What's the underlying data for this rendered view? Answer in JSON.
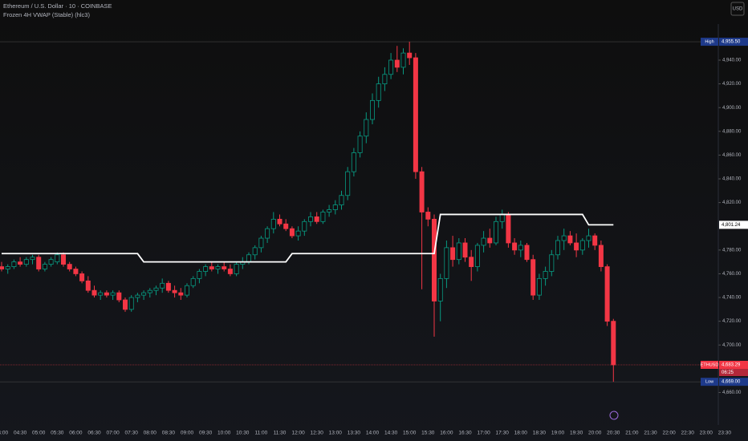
{
  "chart_data": {
    "type": "candlestick",
    "title": "Ethereum / U.S. Dollar · 10 · COINBASE",
    "subtitle": "Frozen 4H VWAP (Stable) (hlc3)",
    "currency": "USD",
    "up_color": "#089981",
    "down_color": "#f23645",
    "ohlc": [
      [
        4766,
        4770,
        4762,
        4764
      ],
      [
        4764,
        4768,
        4760,
        4766
      ],
      [
        4766,
        4772,
        4764,
        4770
      ],
      [
        4770,
        4774,
        4766,
        4768
      ],
      [
        4768,
        4774,
        4766,
        4772
      ],
      [
        4772,
        4776,
        4768,
        4774
      ],
      [
        4774,
        4776,
        4762,
        4764
      ],
      [
        4764,
        4770,
        4762,
        4768
      ],
      [
        4768,
        4774,
        4766,
        4772
      ],
      [
        4770,
        4778,
        4768,
        4776
      ],
      [
        4776,
        4778,
        4766,
        4768
      ],
      [
        4768,
        4770,
        4762,
        4764
      ],
      [
        4764,
        4766,
        4758,
        4760
      ],
      [
        4760,
        4762,
        4752,
        4754
      ],
      [
        4754,
        4758,
        4744,
        4746
      ],
      [
        4746,
        4750,
        4740,
        4742
      ],
      [
        4742,
        4746,
        4738,
        4744
      ],
      [
        4744,
        4746,
        4740,
        4742
      ],
      [
        4742,
        4746,
        4738,
        4744
      ],
      [
        4744,
        4746,
        4736,
        4738
      ],
      [
        4738,
        4740,
        4728,
        4730
      ],
      [
        4730,
        4742,
        4728,
        4740
      ],
      [
        4740,
        4744,
        4736,
        4742
      ],
      [
        4742,
        4746,
        4738,
        4744
      ],
      [
        4744,
        4748,
        4740,
        4746
      ],
      [
        4746,
        4750,
        4742,
        4748
      ],
      [
        4748,
        4756,
        4744,
        4752
      ],
      [
        4752,
        4754,
        4744,
        4746
      ],
      [
        4746,
        4750,
        4740,
        4744
      ],
      [
        4744,
        4748,
        4738,
        4742
      ],
      [
        4742,
        4752,
        4740,
        4750
      ],
      [
        4750,
        4758,
        4748,
        4756
      ],
      [
        4756,
        4764,
        4752,
        4762
      ],
      [
        4762,
        4768,
        4758,
        4766
      ],
      [
        4766,
        4770,
        4762,
        4764
      ],
      [
        4764,
        4768,
        4760,
        4766
      ],
      [
        4766,
        4770,
        4762,
        4764
      ],
      [
        4764,
        4768,
        4758,
        4760
      ],
      [
        4760,
        4770,
        4758,
        4768
      ],
      [
        4768,
        4774,
        4764,
        4770
      ],
      [
        4770,
        4778,
        4768,
        4776
      ],
      [
        4776,
        4784,
        4772,
        4782
      ],
      [
        4782,
        4792,
        4778,
        4790
      ],
      [
        4790,
        4800,
        4786,
        4798
      ],
      [
        4798,
        4812,
        4794,
        4806
      ],
      [
        4806,
        4810,
        4800,
        4802
      ],
      [
        4802,
        4806,
        4796,
        4798
      ],
      [
        4798,
        4800,
        4790,
        4792
      ],
      [
        4792,
        4800,
        4788,
        4796
      ],
      [
        4796,
        4806,
        4792,
        4804
      ],
      [
        4804,
        4812,
        4800,
        4808
      ],
      [
        4808,
        4812,
        4802,
        4804
      ],
      [
        4804,
        4814,
        4802,
        4812
      ],
      [
        4812,
        4818,
        4808,
        4814
      ],
      [
        4814,
        4822,
        4810,
        4818
      ],
      [
        4818,
        4830,
        4814,
        4826
      ],
      [
        4826,
        4850,
        4822,
        4846
      ],
      [
        4846,
        4866,
        4842,
        4862
      ],
      [
        4862,
        4880,
        4858,
        4876
      ],
      [
        4876,
        4896,
        4870,
        4890
      ],
      [
        4890,
        4912,
        4886,
        4906
      ],
      [
        4906,
        4926,
        4900,
        4920
      ],
      [
        4920,
        4934,
        4914,
        4928
      ],
      [
        4928,
        4946,
        4924,
        4940
      ],
      [
        4940,
        4952,
        4930,
        4934
      ],
      [
        4934,
        4950,
        4928,
        4946
      ],
      [
        4946,
        4955.5,
        4936,
        4942
      ],
      [
        4942,
        4946,
        4840,
        4846
      ],
      [
        4846,
        4850,
        4747,
        4812
      ],
      [
        4812,
        4816,
        4800,
        4806
      ],
      [
        4806,
        4810,
        4707,
        4737
      ],
      [
        4737,
        4760,
        4720,
        4756
      ],
      [
        4756,
        4788,
        4748,
        4782
      ],
      [
        4782,
        4792,
        4766,
        4772
      ],
      [
        4772,
        4790,
        4768,
        4786
      ],
      [
        4786,
        4790,
        4770,
        4774
      ],
      [
        4774,
        4780,
        4754,
        4766
      ],
      [
        4766,
        4786,
        4762,
        4784
      ],
      [
        4784,
        4796,
        4778,
        4790
      ],
      [
        4790,
        4798,
        4782,
        4786
      ],
      [
        4786,
        4808,
        4784,
        4804
      ],
      [
        4804,
        4814,
        4798,
        4810
      ],
      [
        4810,
        4812,
        4782,
        4786
      ],
      [
        4786,
        4790,
        4776,
        4780
      ],
      [
        4780,
        4788,
        4774,
        4784
      ],
      [
        4784,
        4786,
        4770,
        4772
      ],
      [
        4772,
        4776,
        4738,
        4742
      ],
      [
        4742,
        4760,
        4738,
        4756
      ],
      [
        4756,
        4766,
        4750,
        4762
      ],
      [
        4762,
        4780,
        4758,
        4776
      ],
      [
        4776,
        4792,
        4772,
        4788
      ],
      [
        4788,
        4798,
        4780,
        4792
      ],
      [
        4792,
        4796,
        4784,
        4786
      ],
      [
        4786,
        4794,
        4774,
        4780
      ],
      [
        4780,
        4790,
        4776,
        4788
      ],
      [
        4788,
        4798,
        4782,
        4792
      ],
      [
        4792,
        4794,
        4780,
        4784
      ],
      [
        4784,
        4788,
        4762,
        4766
      ],
      [
        4766,
        4768,
        4716,
        4720
      ],
      [
        4720,
        4722,
        4669,
        4683.29
      ]
    ],
    "vwap": {
      "color": "#ffffff",
      "values": [
        4777,
        4777,
        4777,
        4777,
        4777,
        4777,
        4777,
        4777,
        4777,
        4777,
        4777,
        4777,
        4777,
        4777,
        4777,
        4777,
        4777,
        4777,
        4777,
        4777,
        4777,
        4777,
        4777,
        4770,
        4770,
        4770,
        4770,
        4770,
        4770,
        4770,
        4770,
        4770,
        4770,
        4770,
        4770,
        4770,
        4770,
        4770,
        4770,
        4770,
        4770,
        4770,
        4770,
        4770,
        4770,
        4770,
        4770,
        4777,
        4777,
        4777,
        4777,
        4777,
        4777,
        4777,
        4777,
        4777,
        4777,
        4777,
        4777,
        4777,
        4777,
        4777,
        4777,
        4777,
        4777,
        4777,
        4777,
        4777,
        4777,
        4777,
        4777,
        4810,
        4810,
        4810,
        4810,
        4810,
        4810,
        4810,
        4810,
        4810,
        4810,
        4810,
        4810,
        4810,
        4810,
        4810,
        4810,
        4810,
        4810,
        4810,
        4810,
        4810,
        4810,
        4810,
        4810,
        4801.24,
        4801.24,
        4801.24,
        4801.24,
        4801.24
      ]
    },
    "ylim": [
      4636,
      4965
    ],
    "yticks": [
      {
        "value": 4660,
        "label": "4,660.00"
      },
      {
        "value": 4680,
        "label": "4,680.00"
      },
      {
        "value": 4700,
        "label": "4,700.00"
      },
      {
        "value": 4720,
        "label": "4,720.00"
      },
      {
        "value": 4740,
        "label": "4,740.00"
      },
      {
        "value": 4760,
        "label": "4,760.00"
      },
      {
        "value": 4780,
        "label": "4,780.00"
      },
      {
        "value": 4820,
        "label": "4,820.00"
      },
      {
        "value": 4840,
        "label": "4,840.00"
      },
      {
        "value": 4860,
        "label": "4,860.00"
      },
      {
        "value": 4880,
        "label": "4,880.00"
      },
      {
        "value": 4900,
        "label": "4,900.00"
      },
      {
        "value": 4920,
        "label": "4,920.00"
      },
      {
        "value": 4940,
        "label": "4,940.00"
      }
    ],
    "xtick_labels": [
      "04:00",
      "04:30",
      "05:00",
      "05:30",
      "06:00",
      "06:30",
      "07:00",
      "07:30",
      "08:00",
      "08:30",
      "09:00",
      "09:30",
      "10:00",
      "10:30",
      "11:00",
      "11:30",
      "12:00",
      "12:30",
      "13:00",
      "13:30",
      "14:00",
      "14:30",
      "15:00",
      "15:30",
      "16:00",
      "16:30",
      "17:00",
      "17:30",
      "18:00",
      "18:30",
      "19:00",
      "19:30",
      "20:00",
      "20:30",
      "21:00",
      "21:30",
      "22:00",
      "22:30",
      "23:00",
      "23:30"
    ],
    "markers": {
      "high": {
        "tag": "High",
        "value": 4955.5,
        "label": "4,955.50",
        "color": "#1e3a8a"
      },
      "low": {
        "tag": "Low",
        "value": 4669,
        "label": "4,669.00",
        "color": "#1e3a8a"
      },
      "last": {
        "tag": "ETHUSD",
        "value": 4683.29,
        "label": "4,683.29",
        "countdown": "06:25",
        "color": "#f23645"
      },
      "vwap_last": {
        "value": 4801.24,
        "label": "4,801.24",
        "color": "#ffffff"
      }
    }
  }
}
